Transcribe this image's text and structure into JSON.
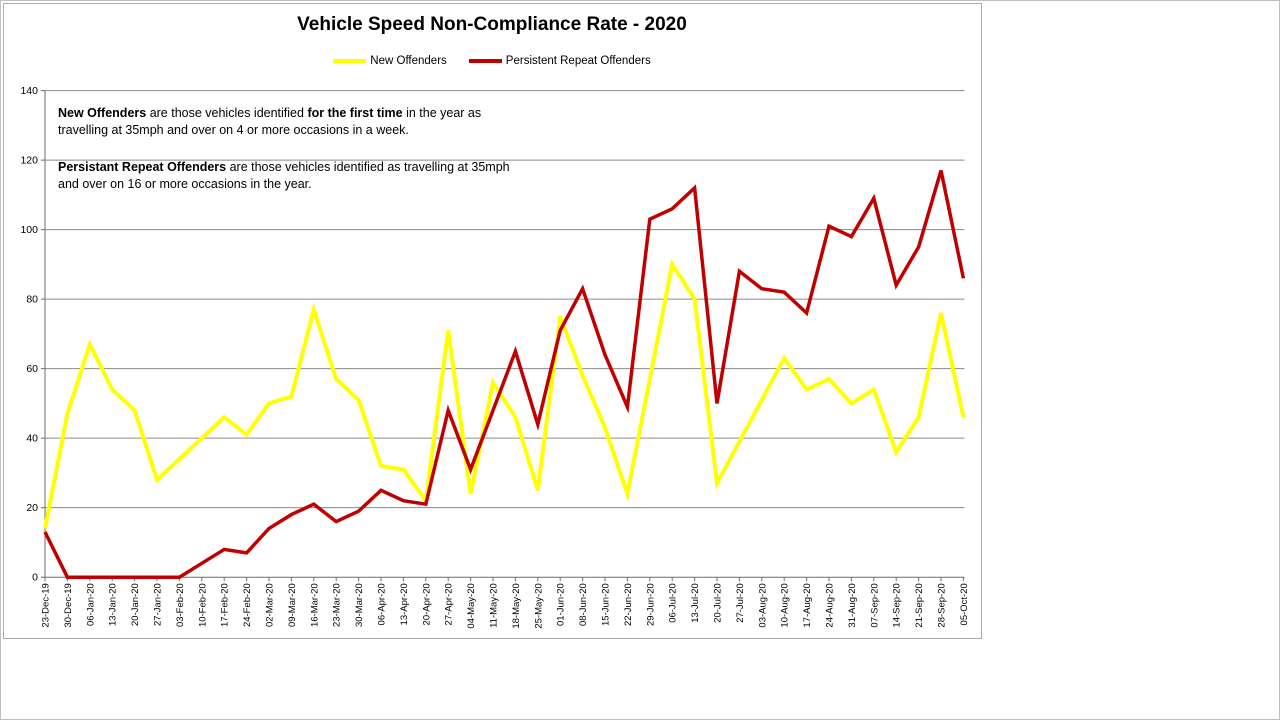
{
  "title": "Vehicle Speed Non-Compliance Rate - 2020",
  "legend": [
    {
      "label": "New Offenders",
      "color": "#FFFF00"
    },
    {
      "label": "Persistent Repeat Offenders",
      "color": "#C00000"
    }
  ],
  "annotations": [
    {
      "segments": [
        {
          "text": "New Offenders",
          "bold": true
        },
        {
          "text": " are those vehicles identified ",
          "bold": false
        },
        {
          "text": "for the first time",
          "bold": true
        },
        {
          "text": " in the year as travelling at 35mph and over on 4 or more occasions in a week.",
          "bold": false
        }
      ]
    },
    {
      "segments": [
        {
          "text": "Persistant Repeat Offenders",
          "bold": true
        },
        {
          "text": " are those vehicles identified as travelling at 35mph and over on 16 or more occasions in the year.",
          "bold": false
        }
      ]
    }
  ],
  "chart_data": {
    "type": "line",
    "title": "Vehicle Speed Non-Compliance Rate - 2020",
    "categories": [
      "23-Dec-19",
      "30-Dec-19",
      "06-Jan-20",
      "13-Jan-20",
      "20-Jan-20",
      "27-Jan-20",
      "03-Feb-20",
      "10-Feb-20",
      "17-Feb-20",
      "24-Feb-20",
      "02-Mar-20",
      "09-Mar-20",
      "16-Mar-20",
      "23-Mar-20",
      "30-Mar-20",
      "06-Apr-20",
      "13-Apr-20",
      "20-Apr-20",
      "27-Apr-20",
      "04-May-20",
      "11-May-20",
      "18-May-20",
      "25-May-20",
      "01-Jun-20",
      "08-Jun-20",
      "15-Jun-20",
      "22-Jun-20",
      "29-Jun-20",
      "06-Jul-20",
      "13-Jul-20",
      "20-Jul-20",
      "27-Jul-20",
      "03-Aug-20",
      "10-Aug-20",
      "17-Aug-20",
      "24-Aug-20",
      "31-Aug-20",
      "07-Sep-20",
      "14-Sep-20",
      "21-Sep-20",
      "28-Sep-20",
      "05-Oct-20"
    ],
    "series": [
      {
        "name": "New Offenders",
        "color": "#FFFF00",
        "values": [
          14,
          47,
          67,
          54,
          48,
          28,
          34,
          40,
          46,
          41,
          50,
          52,
          77,
          57,
          51,
          32,
          31,
          22,
          71,
          24,
          56,
          46,
          25,
          75,
          58,
          43,
          24,
          57,
          90,
          80,
          27,
          39,
          51,
          63,
          54,
          57,
          50,
          54,
          36,
          46,
          76,
          46
        ]
      },
      {
        "name": "Persistent Repeat Offenders",
        "color": "#C00000",
        "values": [
          13,
          0,
          0,
          0,
          0,
          0,
          0,
          4,
          8,
          7,
          14,
          18,
          21,
          16,
          19,
          25,
          22,
          21,
          48,
          31,
          48,
          65,
          44,
          71,
          83,
          64,
          49,
          103,
          106,
          112,
          50,
          88,
          83,
          82,
          76,
          101,
          98,
          109,
          84,
          95,
          117,
          86
        ]
      }
    ],
    "xlabel": "",
    "ylabel": "",
    "ylim": [
      0,
      140
    ],
    "yticks": [
      0,
      20,
      40,
      60,
      80,
      100,
      120,
      140
    ],
    "grid": true,
    "legend_position": "top",
    "gridline_color": "#8c8c8c",
    "axis_color": "#6e6e6e"
  }
}
